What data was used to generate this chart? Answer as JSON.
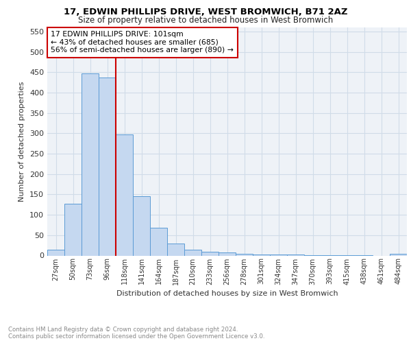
{
  "title1": "17, EDWIN PHILLIPS DRIVE, WEST BROMWICH, B71 2AZ",
  "title2": "Size of property relative to detached houses in West Bromwich",
  "xlabel": "Distribution of detached houses by size in West Bromwich",
  "ylabel": "Number of detached properties",
  "categories": [
    "27sqm",
    "50sqm",
    "73sqm",
    "96sqm",
    "118sqm",
    "141sqm",
    "164sqm",
    "187sqm",
    "210sqm",
    "233sqm",
    "256sqm",
    "278sqm",
    "301sqm",
    "324sqm",
    "347sqm",
    "370sqm",
    "393sqm",
    "415sqm",
    "438sqm",
    "461sqm",
    "484sqm"
  ],
  "values": [
    15,
    128,
    447,
    437,
    298,
    146,
    68,
    29,
    15,
    10,
    7,
    5,
    3,
    2,
    2,
    1,
    1,
    1,
    1,
    0,
    5
  ],
  "bar_color": "#c5d8f0",
  "bar_edge_color": "#5b9bd5",
  "grid_color": "#d0dce8",
  "vline_x": 3.5,
  "vline_color": "#cc0000",
  "annotation_text": "17 EDWIN PHILLIPS DRIVE: 101sqm\n← 43% of detached houses are smaller (685)\n56% of semi-detached houses are larger (890) →",
  "annotation_box_color": "#ffffff",
  "annotation_box_edge": "#cc0000",
  "ylim": [
    0,
    560
  ],
  "yticks": [
    0,
    50,
    100,
    150,
    200,
    250,
    300,
    350,
    400,
    450,
    500,
    550
  ],
  "footnote1": "Contains HM Land Registry data © Crown copyright and database right 2024.",
  "footnote2": "Contains public sector information licensed under the Open Government Licence v3.0.",
  "bg_color": "#eef2f7"
}
